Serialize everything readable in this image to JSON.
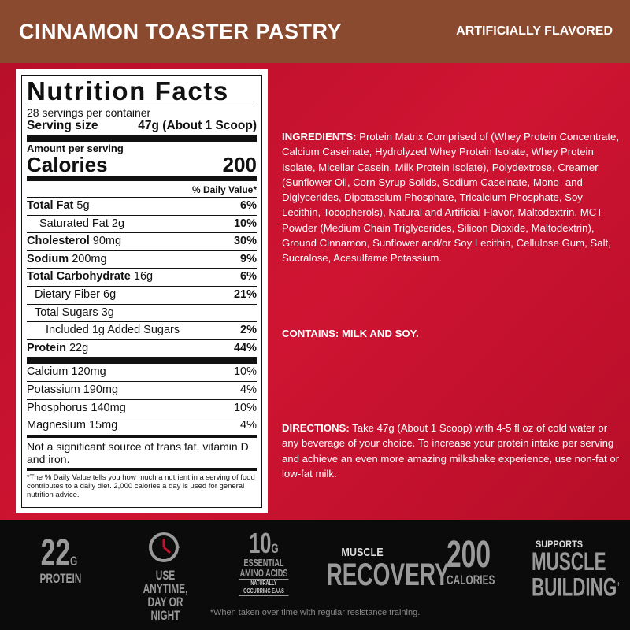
{
  "header": {
    "title": "CINNAMON TOASTER PASTRY",
    "flavor_note": "ARTIFICIALLY FLAVORED"
  },
  "nutrition": {
    "title": "Nutrition Facts",
    "servings": "28 servings per container",
    "serving_size_label": "Serving size",
    "serving_size_value": "47g (About 1 Scoop)",
    "amount_per_serving": "Amount per serving",
    "calories_label": "Calories",
    "calories_value": "200",
    "dv_header": "% Daily Value*",
    "rows": [
      {
        "name": "Total Fat",
        "amount": "5g",
        "dv": "6%"
      },
      {
        "name": "Saturated Fat",
        "amount": "2g",
        "dv": "10%"
      },
      {
        "name": "Cholesterol",
        "amount": "90mg",
        "dv": "30%"
      },
      {
        "name": "Sodium",
        "amount": "200mg",
        "dv": "9%"
      },
      {
        "name": "Total Carbohydrate",
        "amount": "16g",
        "dv": "6%"
      },
      {
        "name": "Dietary Fiber",
        "amount": "6g",
        "dv": "21%"
      },
      {
        "name": "Total Sugars",
        "amount": "3g",
        "dv": ""
      },
      {
        "name": "Included 1g Added Sugars",
        "amount": "",
        "dv": "2%"
      },
      {
        "name": "Protein",
        "amount": "22g",
        "dv": "44%"
      }
    ],
    "minerals": [
      {
        "name": "Calcium",
        "amount": "120mg",
        "dv": "10%"
      },
      {
        "name": "Potassium",
        "amount": "190mg",
        "dv": "4%"
      },
      {
        "name": "Phosphorus",
        "amount": "140mg",
        "dv": "10%"
      },
      {
        "name": "Magnesium",
        "amount": "15mg",
        "dv": "4%"
      }
    ],
    "not_significant": "Not a significant source of trans fat, vitamin D and iron.",
    "footnote": "*The % Daily Value tells you how much a nutrient in a serving of food contributes to a daily diet. 2,000 calories a day is used for general nutrition advice."
  },
  "ingredients": {
    "label": "INGREDIENTS:",
    "text": " Protein Matrix Comprised of (Whey Protein Concentrate, Calcium Caseinate, Hydrolyzed Whey Protein Isolate, Whey Protein Isolate, Micellar Casein, Milk Protein Isolate), Polydextrose, Creamer (Sunflower Oil, Corn Syrup Solids, Sodium Caseinate, Mono- and Diglycerides, Dipotassium Phosphate, Tricalcium Phosphate, Soy Lecithin, Tocopherols), Natural and Artificial Flavor, Maltodextrin, MCT Powder (Medium Chain Triglycerides, Silicon Dioxide, Maltodextrin), Ground Cinnamon, Sunflower and/or Soy Lecithin, Cellulose Gum, Salt, Sucralose, Acesulfame Potassium."
  },
  "contains": "CONTAINS: MILK AND SOY.",
  "directions": {
    "label": "DIRECTIONS:",
    "text": " Take 47g (About 1 Scoop) with 4-5 fl oz of cold water or any beverage of your choice. To increase your protein intake per serving and achieve an even more amazing milkshake experience, use non-fat or low-fat milk."
  },
  "badges": {
    "protein": {
      "value": "22",
      "unit": "G",
      "label": "PROTEIN"
    },
    "anytime": {
      "icon": "clock-icon",
      "line1": "USE ANYTIME,",
      "line2": "DAY OR NIGHT"
    },
    "eaa": {
      "value": "10",
      "unit": "G",
      "line1": "ESSENTIAL",
      "line2": "AMINO ACIDS",
      "sub1": "NATURALLY",
      "sub2": "OCCURRING EAAS"
    },
    "recovery": {
      "top": "MUSCLE",
      "main": "RECOVERY"
    },
    "calories": {
      "value": "200",
      "label": "CALORIES"
    },
    "building": {
      "top": "SUPPORTS",
      "line1": "MUSCLE",
      "line2": "BUILDING",
      "mark": "+"
    }
  },
  "disclaimer": "*When taken over time with regular resistance training."
}
